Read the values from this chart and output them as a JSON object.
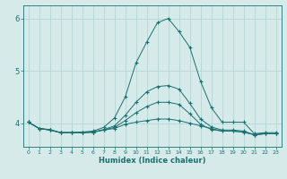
{
  "xlabel": "Humidex (Indice chaleur)",
  "ylabel": "",
  "background_color": "#d6eaea",
  "grid_color": "#b8d4d4",
  "line_color": "#1a7070",
  "xlim": [
    -0.5,
    23.5
  ],
  "ylim": [
    3.55,
    6.25
  ],
  "yticks": [
    4,
    5,
    6
  ],
  "xticks": [
    0,
    1,
    2,
    3,
    4,
    5,
    6,
    7,
    8,
    9,
    10,
    11,
    12,
    13,
    14,
    15,
    16,
    17,
    18,
    19,
    20,
    21,
    22,
    23
  ],
  "series": [
    [
      4.02,
      3.9,
      3.88,
      3.82,
      3.82,
      3.83,
      3.85,
      3.92,
      4.1,
      4.5,
      5.15,
      5.55,
      5.92,
      6.0,
      5.75,
      5.45,
      4.8,
      4.3,
      4.02,
      4.02,
      4.02,
      3.8,
      3.82,
      3.82
    ],
    [
      4.02,
      3.9,
      3.87,
      3.82,
      3.82,
      3.82,
      3.83,
      3.88,
      3.95,
      4.15,
      4.4,
      4.6,
      4.7,
      4.72,
      4.65,
      4.38,
      4.08,
      3.93,
      3.87,
      3.87,
      3.85,
      3.78,
      3.8,
      3.8
    ],
    [
      4.02,
      3.9,
      3.87,
      3.82,
      3.82,
      3.82,
      3.83,
      3.87,
      3.92,
      4.05,
      4.2,
      4.32,
      4.4,
      4.4,
      4.36,
      4.18,
      3.98,
      3.88,
      3.85,
      3.85,
      3.83,
      3.78,
      3.8,
      3.8
    ],
    [
      4.02,
      3.9,
      3.87,
      3.82,
      3.82,
      3.82,
      3.83,
      3.87,
      3.9,
      3.98,
      4.02,
      4.05,
      4.08,
      4.08,
      4.05,
      4.0,
      3.95,
      3.9,
      3.85,
      3.85,
      3.83,
      3.78,
      3.8,
      3.8
    ]
  ]
}
